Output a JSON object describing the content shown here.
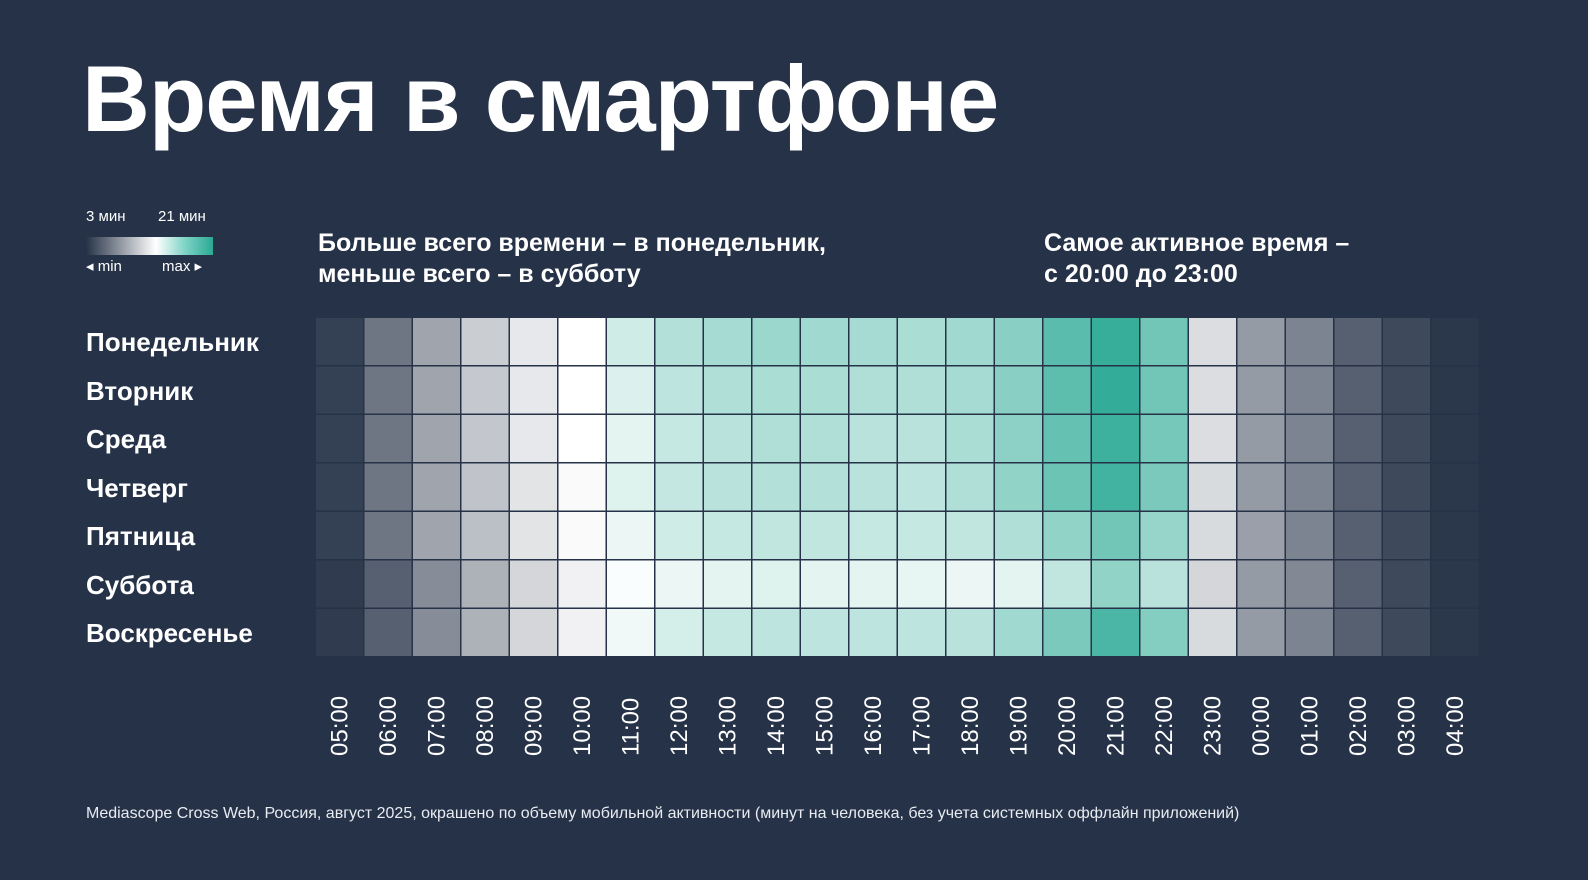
{
  "title": "Время в смартфоне",
  "legend": {
    "min_value": "3 мин",
    "max_value": "21 мин",
    "min_label": "◂ min",
    "max_label": "max ▸"
  },
  "notes": {
    "left_line1": "Больше всего времени – в понедельник,",
    "left_line2": "меньше всего – в субботу",
    "right_line1": "Самое активное время –",
    "right_line2": "с 20:00 до 23:00"
  },
  "footer": "Mediascope Cross Web, Россия, август 2025, окрашено по объему мобильной активности (минут на человека, без учета системных оффлайн приложений)",
  "colors": {
    "background": "#263247",
    "scale_low": "#263247",
    "scale_mid": "#ffffff",
    "scale_high": "#2aa994",
    "text": "#ffffff"
  },
  "chart_data": {
    "type": "heatmap",
    "title": "Время в смартфоне",
    "unit": "мин",
    "color_range": [
      3,
      21
    ],
    "x": [
      "05:00",
      "06:00",
      "07:00",
      "08:00",
      "09:00",
      "10:00",
      "11:00",
      "12:00",
      "13:00",
      "14:00",
      "15:00",
      "16:00",
      "17:00",
      "18:00",
      "19:00",
      "20:00",
      "21:00",
      "22:00",
      "23:00",
      "00:00",
      "01:00",
      "02:00",
      "03:00",
      "04:00"
    ],
    "y": [
      "Понедельник",
      "Вторник",
      "Среда",
      "Четверг",
      "Пятница",
      "Суббота",
      "Воскресенье"
    ],
    "values": [
      [
        3.6,
        6.0,
        8.0,
        9.8,
        11.0,
        12.0,
        14.0,
        15.2,
        15.8,
        16.2,
        16.0,
        15.8,
        15.6,
        16.0,
        17.0,
        19.0,
        20.5,
        18.0,
        10.5,
        7.6,
        6.6,
        5.0,
        4.0,
        3.2
      ],
      [
        3.6,
        6.0,
        8.0,
        9.6,
        11.0,
        12.0,
        13.5,
        14.8,
        15.4,
        15.6,
        15.6,
        15.4,
        15.4,
        15.8,
        17.0,
        18.8,
        20.6,
        18.0,
        10.5,
        7.6,
        6.6,
        5.0,
        4.0,
        3.2
      ],
      [
        3.6,
        6.0,
        8.0,
        9.5,
        11.0,
        12.0,
        13.2,
        14.4,
        15.0,
        15.4,
        15.4,
        15.0,
        15.0,
        15.6,
        16.8,
        18.5,
        20.2,
        17.8,
        10.5,
        7.6,
        6.6,
        5.0,
        4.0,
        3.2
      ],
      [
        3.6,
        6.0,
        8.0,
        9.4,
        10.8,
        11.8,
        13.4,
        14.5,
        15.0,
        15.2,
        15.2,
        15.0,
        14.8,
        15.4,
        16.6,
        18.2,
        20.0,
        17.6,
        10.4,
        7.6,
        6.6,
        5.0,
        4.0,
        3.2
      ],
      [
        3.6,
        6.0,
        8.0,
        9.2,
        10.8,
        11.8,
        12.8,
        14.0,
        14.4,
        14.6,
        14.6,
        14.4,
        14.4,
        14.6,
        15.4,
        16.6,
        18.0,
        16.4,
        10.4,
        7.8,
        6.6,
        5.0,
        4.0,
        3.2
      ],
      [
        3.4,
        5.0,
        7.0,
        8.6,
        10.2,
        11.4,
        12.2,
        12.8,
        13.2,
        13.4,
        13.2,
        13.2,
        13.0,
        12.8,
        13.2,
        14.6,
        16.6,
        15.0,
        10.2,
        7.6,
        6.8,
        5.0,
        4.0,
        3.2
      ],
      [
        3.4,
        5.0,
        7.0,
        8.6,
        10.2,
        11.4,
        12.6,
        13.8,
        14.4,
        14.8,
        14.8,
        14.8,
        14.8,
        15.0,
        16.0,
        17.6,
        19.6,
        17.2,
        10.4,
        7.6,
        6.6,
        5.0,
        4.0,
        3.2
      ]
    ]
  }
}
